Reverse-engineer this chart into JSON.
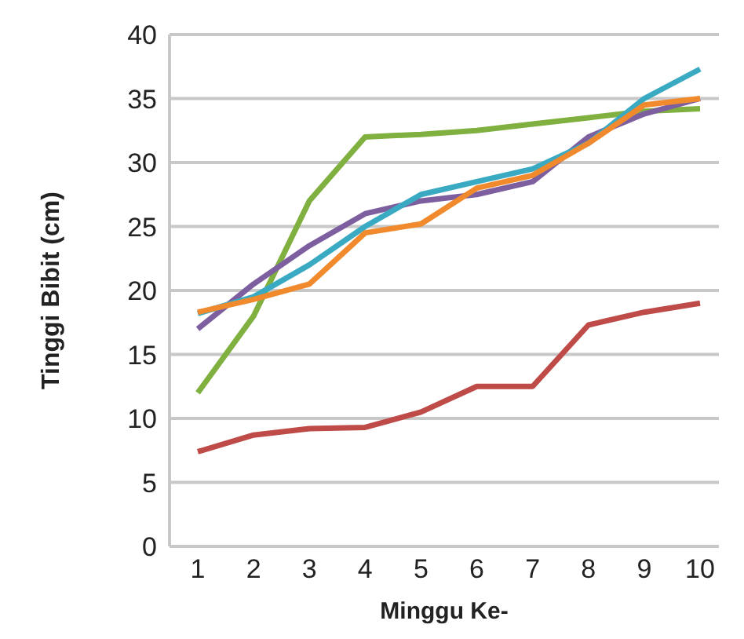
{
  "chart_data": {
    "type": "line",
    "xlabel": "Minggu Ke-",
    "ylabel": "Tinggi Bibit  (cm)",
    "categories": [
      "1",
      "2",
      "3",
      "4",
      "5",
      "6",
      "7",
      "8",
      "9",
      "10"
    ],
    "series": [
      {
        "color": "#be4b48",
        "values": [
          7.4,
          8.7,
          9.2,
          9.3,
          10.5,
          12.5,
          12.5,
          17.3,
          18.3,
          19.0
        ]
      },
      {
        "color": "#7fb040",
        "values": [
          12,
          18,
          27,
          32,
          32.2,
          32.5,
          33,
          33.5,
          34,
          34.2
        ]
      },
      {
        "color": "#7d5fa0",
        "values": [
          17,
          20.5,
          23.5,
          26,
          27,
          27.5,
          28.5,
          32,
          33.8,
          35
        ]
      },
      {
        "color": "#3aaac3",
        "values": [
          18.2,
          19.5,
          22,
          25,
          27.5,
          28.5,
          29.5,
          31.5,
          35,
          37.3
        ]
      },
      {
        "color": "#f08a2c",
        "values": [
          18.3,
          19.3,
          20.5,
          24.5,
          25.2,
          28,
          29,
          31.5,
          34.5,
          35
        ]
      }
    ],
    "ylim": [
      0,
      40
    ],
    "yticks": [
      0,
      5,
      10,
      15,
      20,
      25,
      30,
      35,
      40
    ],
    "grid": "y",
    "legend": false,
    "marker": "none",
    "line_style": "solid"
  }
}
